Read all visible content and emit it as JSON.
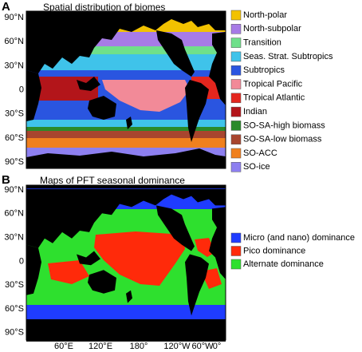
{
  "panel_a": {
    "label": "A",
    "title": "Spatial distribution of biomes",
    "lat_labels": [
      "90°N",
      "60°N",
      "30°N",
      "0",
      "30°S",
      "60°S",
      "90°S"
    ],
    "legend": [
      {
        "label": "North-polar",
        "color": "#f2c200"
      },
      {
        "label": "North-subpolar",
        "color": "#a77be6"
      },
      {
        "label": "Transition",
        "color": "#6fe08a"
      },
      {
        "label": "Seas. Strat. Subtropics",
        "color": "#3fc3ea"
      },
      {
        "label": "Subtropics",
        "color": "#2a55e0"
      },
      {
        "label": "Tropical Pacific",
        "color": "#f28a98"
      },
      {
        "label": "Tropical Atlantic",
        "color": "#e4261e"
      },
      {
        "label": "Indian",
        "color": "#b3151a"
      },
      {
        "label": "SO-SA-high biomass",
        "color": "#2a8a2a"
      },
      {
        "label": "SO-SA-low biomass",
        "color": "#a8452e"
      },
      {
        "label": "SO-ACC",
        "color": "#f0801e"
      },
      {
        "label": "SO-ice",
        "color": "#8d7ff0"
      }
    ]
  },
  "panel_b": {
    "label": "B",
    "title": "Maps of PFT seasonal dominance",
    "lat_labels": [
      "90°N",
      "60°N",
      "30°N",
      "0",
      "30°S",
      "60°S",
      "90°S"
    ],
    "lon_labels": [
      "60°E",
      "120°E",
      "180°",
      "120°W",
      "60°W",
      "0°"
    ],
    "legend": [
      {
        "label": "Micro (and nano) dominance",
        "color": "#1f3cff"
      },
      {
        "label": "Pico dominance",
        "color": "#ff2a0a"
      },
      {
        "label": "Alternate dominance",
        "color": "#2ee02e"
      }
    ]
  }
}
